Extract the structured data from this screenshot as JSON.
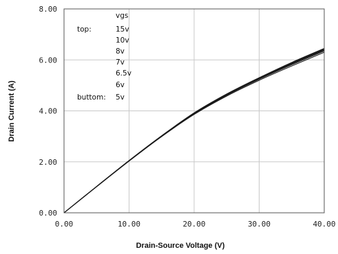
{
  "chart_data": {
    "type": "line",
    "title": "",
    "xlabel": "Drain-Source Voltage (V)",
    "ylabel": "Drain Current (A)",
    "xlim": [
      0,
      40
    ],
    "ylim": [
      0,
      8
    ],
    "x_ticks": [
      0,
      10,
      20,
      30,
      40
    ],
    "y_ticks": [
      0,
      2,
      4,
      6,
      8
    ],
    "x_tick_labels": [
      "0.00",
      "10.00",
      "20.00",
      "30.00",
      "40.00"
    ],
    "y_tick_labels": [
      "0.00",
      "2.00",
      "4.00",
      "6.00",
      "8.00"
    ],
    "grid": true,
    "legend": {
      "placement": "top-left",
      "header": "vgs",
      "top_label": "top:",
      "bottom_label": "buttom:",
      "entries": [
        "15v",
        "10v",
        "8v",
        "7v",
        "6.5v",
        "6v",
        "5v"
      ]
    },
    "x": [
      0,
      5,
      10,
      15,
      20,
      25,
      30,
      35,
      40
    ],
    "series": [
      {
        "values": [
          0,
          1.03,
          2.05,
          3.02,
          3.92,
          4.66,
          5.3,
          5.9,
          6.45
        ]
      },
      {
        "values": [
          0,
          1.03,
          2.05,
          3.02,
          3.92,
          4.66,
          5.3,
          5.89,
          6.44
        ]
      },
      {
        "values": [
          0,
          1.03,
          2.05,
          3.02,
          3.91,
          4.65,
          5.29,
          5.88,
          6.42
        ]
      },
      {
        "values": [
          0,
          1.03,
          2.05,
          3.02,
          3.9,
          4.64,
          5.28,
          5.86,
          6.4
        ]
      },
      {
        "values": [
          0,
          1.03,
          2.04,
          3.01,
          3.89,
          4.63,
          5.26,
          5.84,
          6.38
        ]
      },
      {
        "values": [
          0,
          1.03,
          2.04,
          3.0,
          3.88,
          4.61,
          5.24,
          5.81,
          6.35
        ]
      },
      {
        "values": [
          0,
          1.02,
          2.03,
          2.99,
          3.86,
          4.58,
          5.2,
          5.76,
          6.3
        ]
      }
    ],
    "series_color": "#1a1a1a"
  }
}
